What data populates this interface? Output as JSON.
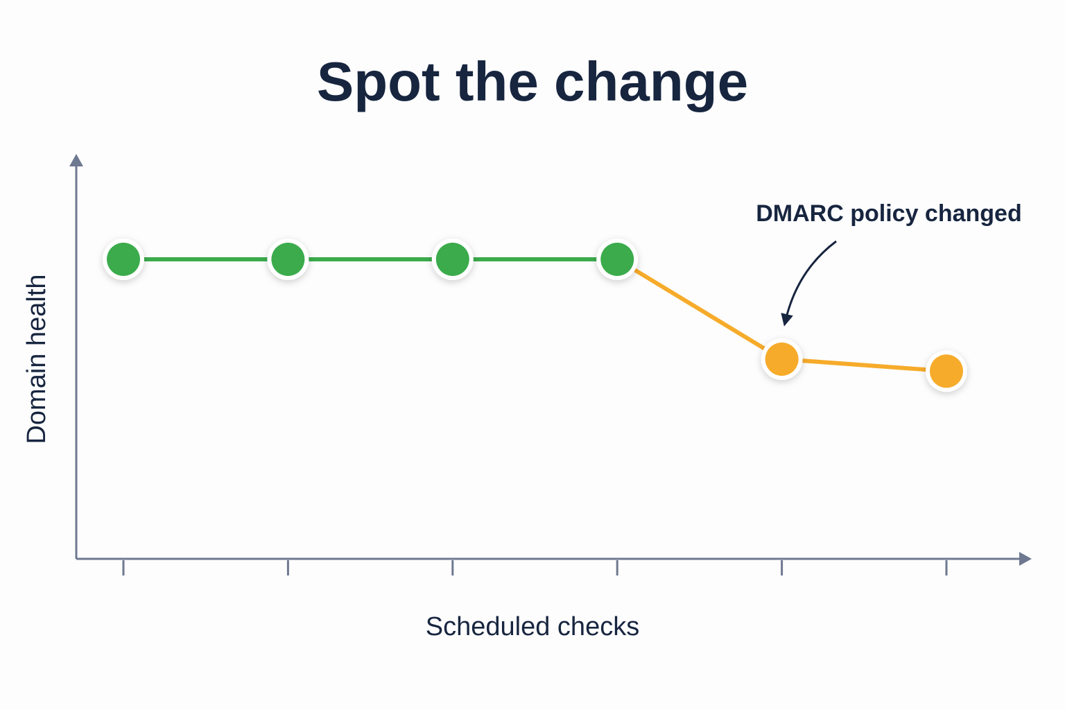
{
  "chart_data": {
    "type": "line",
    "title": "Spot the change",
    "x_label": "Scheduled checks",
    "y_label": "Domain health",
    "annotation": "DMARC policy changed",
    "categories": [
      null,
      null,
      null,
      null,
      null,
      null
    ],
    "values": [
      75,
      75,
      75,
      75,
      50,
      47
    ],
    "colors": [
      "#3bab4c",
      "#3bab4c",
      "#3bab4c",
      "#3bab4c",
      "#f6ab2a",
      "#f6ab2a"
    ],
    "ylim": [
      0,
      100
    ]
  }
}
